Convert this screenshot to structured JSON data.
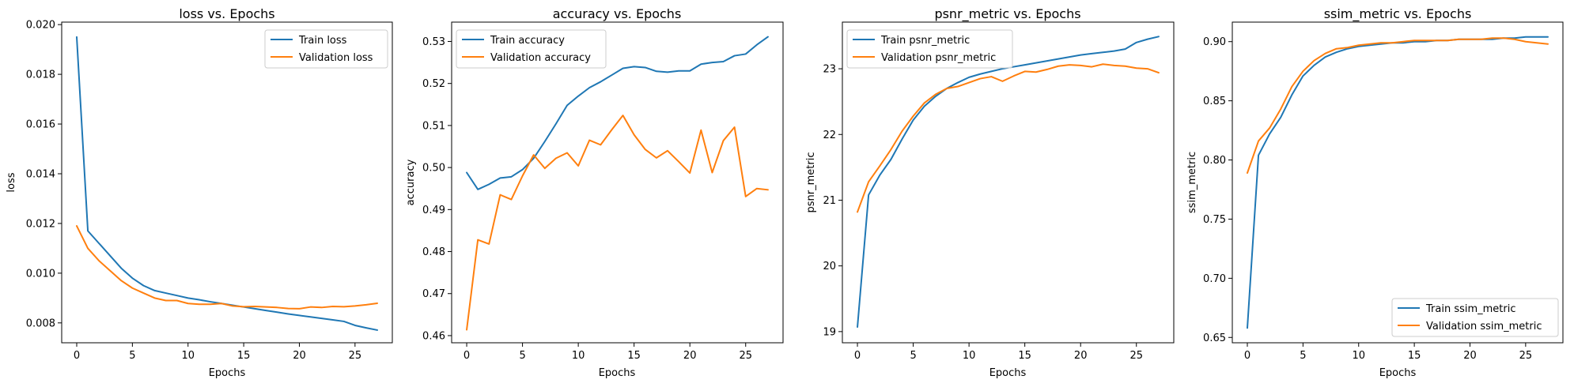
{
  "colors": {
    "train": "#1f77b4",
    "validation": "#ff7f0e",
    "axes": "#000000",
    "background": "#ffffff"
  },
  "chart_data": [
    {
      "type": "line",
      "title": "loss vs. Epochs",
      "xlabel": "Epochs",
      "ylabel": "loss",
      "xlim": [
        -1.35,
        28.35
      ],
      "ylim": [
        0.0072,
        0.0201
      ],
      "xticks": [
        0,
        5,
        10,
        15,
        20,
        25
      ],
      "yticks": [
        0.008,
        0.01,
        0.012,
        0.014,
        0.016,
        0.018,
        0.02
      ],
      "ytick_labels": [
        "0.008",
        "0.010",
        "0.012",
        "0.014",
        "0.016",
        "0.018",
        "0.020"
      ],
      "grid": false,
      "legend": "upper-right",
      "x": [
        0,
        1,
        2,
        3,
        4,
        5,
        6,
        7,
        8,
        9,
        10,
        11,
        12,
        13,
        14,
        15,
        16,
        17,
        18,
        19,
        20,
        21,
        22,
        23,
        24,
        25,
        26,
        27
      ],
      "series": [
        {
          "name": "Train loss",
          "color": "#1f77b4",
          "values": [
            0.0195,
            0.0117,
            0.0112,
            0.0107,
            0.0102,
            0.0098,
            0.0095,
            0.0093,
            0.0092,
            0.0091,
            0.009,
            0.00893,
            0.00885,
            0.00878,
            0.00871,
            0.00864,
            0.00857,
            0.0085,
            0.00843,
            0.00836,
            0.0083,
            0.00824,
            0.00818,
            0.00812,
            0.00806,
            0.0079,
            0.0078,
            0.00771
          ]
        },
        {
          "name": "Validation loss",
          "color": "#ff7f0e",
          "values": [
            0.0119,
            0.011,
            0.0105,
            0.0101,
            0.0097,
            0.0094,
            0.0092,
            0.009,
            0.0089,
            0.0089,
            0.00878,
            0.00875,
            0.00875,
            0.00878,
            0.00868,
            0.00865,
            0.00866,
            0.00864,
            0.00862,
            0.00858,
            0.00857,
            0.00864,
            0.00862,
            0.00866,
            0.00865,
            0.00868,
            0.00873,
            0.00879
          ]
        }
      ]
    },
    {
      "type": "line",
      "title": "accuracy vs. Epochs",
      "xlabel": "Epochs",
      "ylabel": "accuracy",
      "xlim": [
        -1.35,
        28.35
      ],
      "ylim": [
        0.4583,
        0.5346
      ],
      "xticks": [
        0,
        5,
        10,
        15,
        20,
        25
      ],
      "yticks": [
        0.46,
        0.47,
        0.48,
        0.49,
        0.5,
        0.51,
        0.52,
        0.53
      ],
      "ytick_labels": [
        "0.46",
        "0.47",
        "0.48",
        "0.49",
        "0.50",
        "0.51",
        "0.52",
        "0.53"
      ],
      "grid": false,
      "legend": "upper-left",
      "x": [
        0,
        1,
        2,
        3,
        4,
        5,
        6,
        7,
        8,
        9,
        10,
        11,
        12,
        13,
        14,
        15,
        16,
        17,
        18,
        19,
        20,
        21,
        22,
        23,
        24,
        25,
        26,
        27
      ],
      "series": [
        {
          "name": "Train accuracy",
          "color": "#1f77b4",
          "values": [
            0.4988,
            0.4948,
            0.496,
            0.4975,
            0.4978,
            0.4995,
            0.5022,
            0.5062,
            0.5104,
            0.5148,
            0.517,
            0.519,
            0.5204,
            0.522,
            0.5236,
            0.524,
            0.5238,
            0.5229,
            0.5227,
            0.523,
            0.523,
            0.5246,
            0.525,
            0.5252,
            0.5266,
            0.527,
            0.5292,
            0.5311
          ]
        },
        {
          "name": "Validation accuracy",
          "color": "#ff7f0e",
          "values": [
            0.4614,
            0.4828,
            0.4818,
            0.4935,
            0.4924,
            0.498,
            0.503,
            0.4998,
            0.5022,
            0.5035,
            0.5004,
            0.5065,
            0.5054,
            0.509,
            0.5124,
            0.5078,
            0.5043,
            0.5023,
            0.504,
            0.5014,
            0.4987,
            0.5089,
            0.4988,
            0.5064,
            0.5096,
            0.4931,
            0.495,
            0.4947
          ]
        }
      ]
    },
    {
      "type": "line",
      "title": "psnr_metric vs. Epochs",
      "xlabel": "Epochs",
      "ylabel": "psnr_metric",
      "xlim": [
        -1.35,
        28.35
      ],
      "ylim": [
        18.83,
        23.71
      ],
      "xticks": [
        0,
        5,
        10,
        15,
        20,
        25
      ],
      "yticks": [
        19,
        20,
        21,
        22,
        23
      ],
      "ytick_labels": [
        "19",
        "20",
        "21",
        "22",
        "23"
      ],
      "grid": false,
      "legend": "upper-left",
      "x": [
        0,
        1,
        2,
        3,
        4,
        5,
        6,
        7,
        8,
        9,
        10,
        11,
        12,
        13,
        14,
        15,
        16,
        17,
        18,
        19,
        20,
        21,
        22,
        23,
        24,
        25,
        26,
        27
      ],
      "series": [
        {
          "name": "Train psnr_metric",
          "color": "#1f77b4",
          "values": [
            19.07,
            21.08,
            21.38,
            21.62,
            21.93,
            22.22,
            22.43,
            22.58,
            22.7,
            22.79,
            22.87,
            22.92,
            22.96,
            23.0,
            23.03,
            23.06,
            23.09,
            23.12,
            23.15,
            23.18,
            23.21,
            23.23,
            23.25,
            23.27,
            23.3,
            23.4,
            23.45,
            23.49
          ]
        },
        {
          "name": "Validation psnr_metric",
          "color": "#ff7f0e",
          "values": [
            20.82,
            21.28,
            21.52,
            21.77,
            22.05,
            22.28,
            22.48,
            22.61,
            22.7,
            22.73,
            22.79,
            22.85,
            22.88,
            22.81,
            22.89,
            22.96,
            22.95,
            22.99,
            23.04,
            23.06,
            23.05,
            23.03,
            23.07,
            23.05,
            23.04,
            23.01,
            23.0,
            22.94
          ]
        }
      ]
    },
    {
      "type": "line",
      "title": "ssim_metric vs. Epochs",
      "xlabel": "Epochs",
      "ylabel": "ssim_metric",
      "xlim": [
        -1.35,
        28.35
      ],
      "ylim": [
        0.6455,
        0.9165
      ],
      "xticks": [
        0,
        5,
        10,
        15,
        20,
        25
      ],
      "yticks": [
        0.65,
        0.7,
        0.75,
        0.8,
        0.85,
        0.9
      ],
      "ytick_labels": [
        "0.65",
        "0.70",
        "0.75",
        "0.80",
        "0.85",
        "0.90"
      ],
      "grid": false,
      "legend": "lower-right",
      "x": [
        0,
        1,
        2,
        3,
        4,
        5,
        6,
        7,
        8,
        9,
        10,
        11,
        12,
        13,
        14,
        15,
        16,
        17,
        18,
        19,
        20,
        21,
        22,
        23,
        24,
        25,
        26,
        27
      ],
      "series": [
        {
          "name": "Train ssim_metric",
          "color": "#1f77b4",
          "values": [
            0.658,
            0.804,
            0.822,
            0.836,
            0.855,
            0.871,
            0.88,
            0.887,
            0.891,
            0.894,
            0.896,
            0.897,
            0.898,
            0.899,
            0.899,
            0.9,
            0.9,
            0.901,
            0.901,
            0.902,
            0.902,
            0.902,
            0.902,
            0.903,
            0.903,
            0.904,
            0.904,
            0.904
          ]
        },
        {
          "name": "Validation ssim_metric",
          "color": "#ff7f0e",
          "values": [
            0.789,
            0.816,
            0.827,
            0.843,
            0.862,
            0.875,
            0.884,
            0.89,
            0.894,
            0.895,
            0.897,
            0.898,
            0.899,
            0.899,
            0.9,
            0.901,
            0.901,
            0.901,
            0.901,
            0.902,
            0.902,
            0.902,
            0.903,
            0.903,
            0.902,
            0.9,
            0.899,
            0.898
          ]
        }
      ]
    }
  ]
}
